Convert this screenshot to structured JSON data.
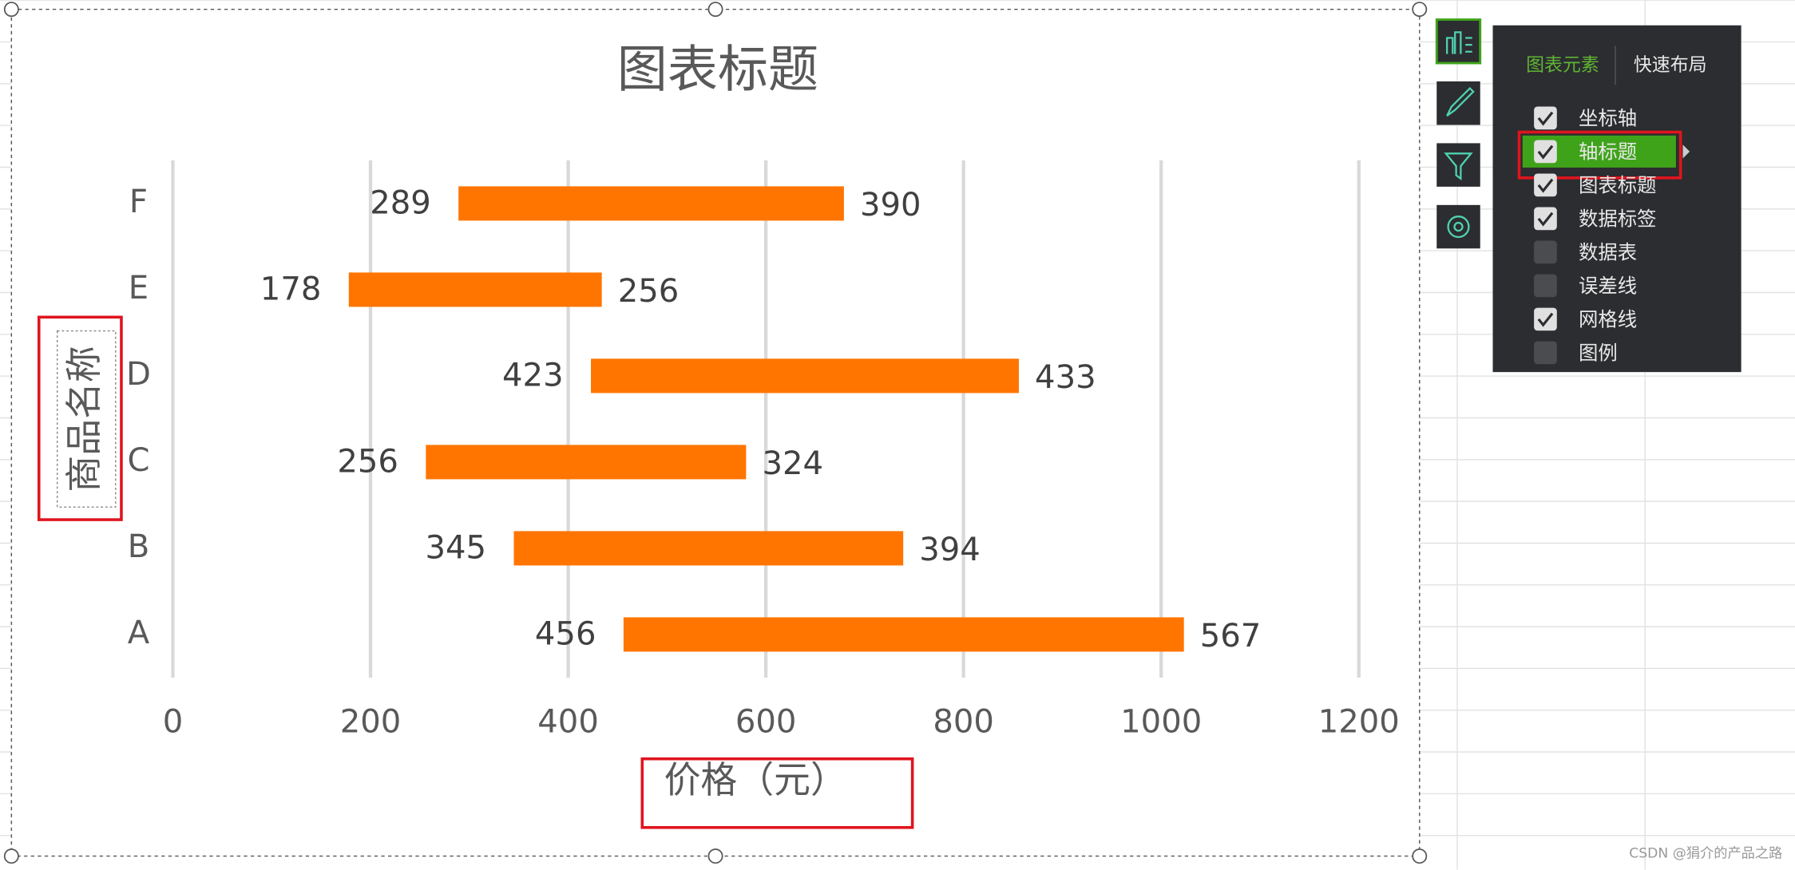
{
  "chart_data": {
    "type": "bar",
    "orientation": "horizontal",
    "stacked": true,
    "title": "图表标题",
    "x_label": "价格（元）",
    "y_label": "商品名称",
    "categories": [
      "A",
      "B",
      "C",
      "D",
      "E",
      "F"
    ],
    "series": [
      {
        "color": "none",
        "values": [
          456,
          345,
          256,
          423,
          178,
          289
        ]
      },
      {
        "color": "#ff7500",
        "values": [
          567,
          394,
          324,
          433,
          256,
          390
        ]
      }
    ],
    "xlim": [
      0,
      1200
    ],
    "xticks": [
      0,
      200,
      400,
      600,
      800,
      1000,
      1200
    ],
    "grid": true,
    "data_labels": true
  },
  "panel": {
    "tabs": [
      "图表元素",
      "快速布局"
    ],
    "items": [
      {
        "label": "坐标轴",
        "checked": true
      },
      {
        "label": "轴标题",
        "checked": true,
        "highlighted": true
      },
      {
        "label": "图表标题",
        "checked": true
      },
      {
        "label": "数据标签",
        "checked": true
      },
      {
        "label": "数据表",
        "checked": false
      },
      {
        "label": "误差线",
        "checked": false
      },
      {
        "label": "网格线",
        "checked": true
      },
      {
        "label": "图例",
        "checked": false
      }
    ]
  },
  "watermark": "CSDN @狷介的产品之路"
}
